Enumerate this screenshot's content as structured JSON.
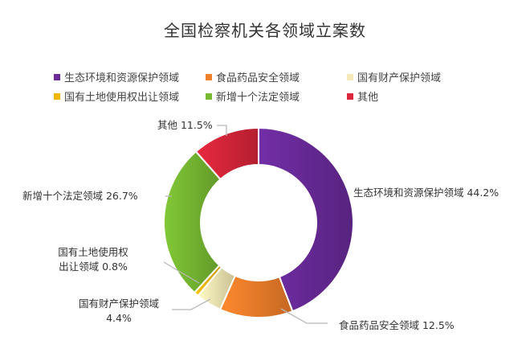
{
  "chart_data": {
    "type": "pie",
    "donut": true,
    "title": "全国检察机关各领域立案数",
    "legend_position": "top",
    "slices": [
      {
        "name": "生态环境和资源保护领域",
        "value": 44.2,
        "label": "44.2%",
        "color": "#6a2b9b"
      },
      {
        "name": "食品药品安全领域",
        "value": 12.5,
        "label": "12.5%",
        "color": "#f07f2b"
      },
      {
        "name": "国有财产保护领域",
        "value": 4.4,
        "label": "4.4%",
        "color": "#f5e9b6"
      },
      {
        "name": "国有土地使用权出让领域",
        "value": 0.8,
        "label": "0.8%",
        "color": "#f2b600"
      },
      {
        "name": "新增十个法定领域",
        "value": 26.7,
        "label": "26.7%",
        "color": "#77ba32"
      },
      {
        "name": "其他",
        "value": 11.5,
        "label": "11.5%",
        "color": "#d9263b"
      }
    ]
  }
}
